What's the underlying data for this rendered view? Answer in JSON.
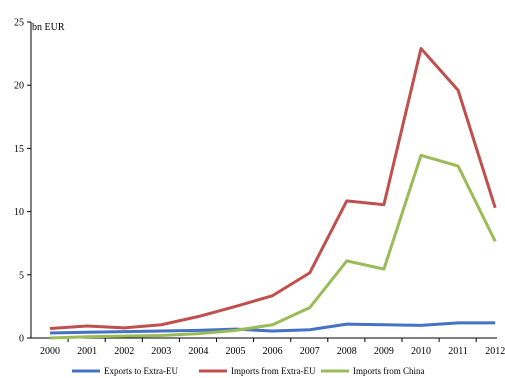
{
  "chart_data": {
    "type": "line",
    "ylabel": "bn EUR",
    "ylim": [
      0,
      25
    ],
    "yticks": [
      0,
      5,
      10,
      15,
      20,
      25
    ],
    "categories": [
      "2000",
      "2001",
      "2002",
      "2003",
      "2004",
      "2005",
      "2006",
      "2007",
      "2008",
      "2009",
      "2010",
      "2011",
      "2012"
    ],
    "grid": false,
    "legend_position": "bottom",
    "series": [
      {
        "name": "Exports to Extra-EU",
        "color": "#4472C4",
        "values": [
          0.4,
          0.45,
          0.5,
          0.55,
          0.6,
          0.7,
          0.55,
          0.65,
          1.1,
          1.05,
          1.0,
          1.2,
          1.2
        ]
      },
      {
        "name": "Imports from Extra-EU",
        "color": "#C0504D",
        "values": [
          0.75,
          0.95,
          0.8,
          1.05,
          1.7,
          2.5,
          3.35,
          5.15,
          10.85,
          10.55,
          22.9,
          19.6,
          10.3
        ]
      },
      {
        "name": "Imports from China",
        "color": "#9BBB59",
        "values": [
          0.0,
          0.1,
          0.15,
          0.2,
          0.35,
          0.6,
          1.05,
          2.4,
          6.1,
          5.45,
          14.45,
          13.6,
          7.65
        ]
      }
    ]
  }
}
